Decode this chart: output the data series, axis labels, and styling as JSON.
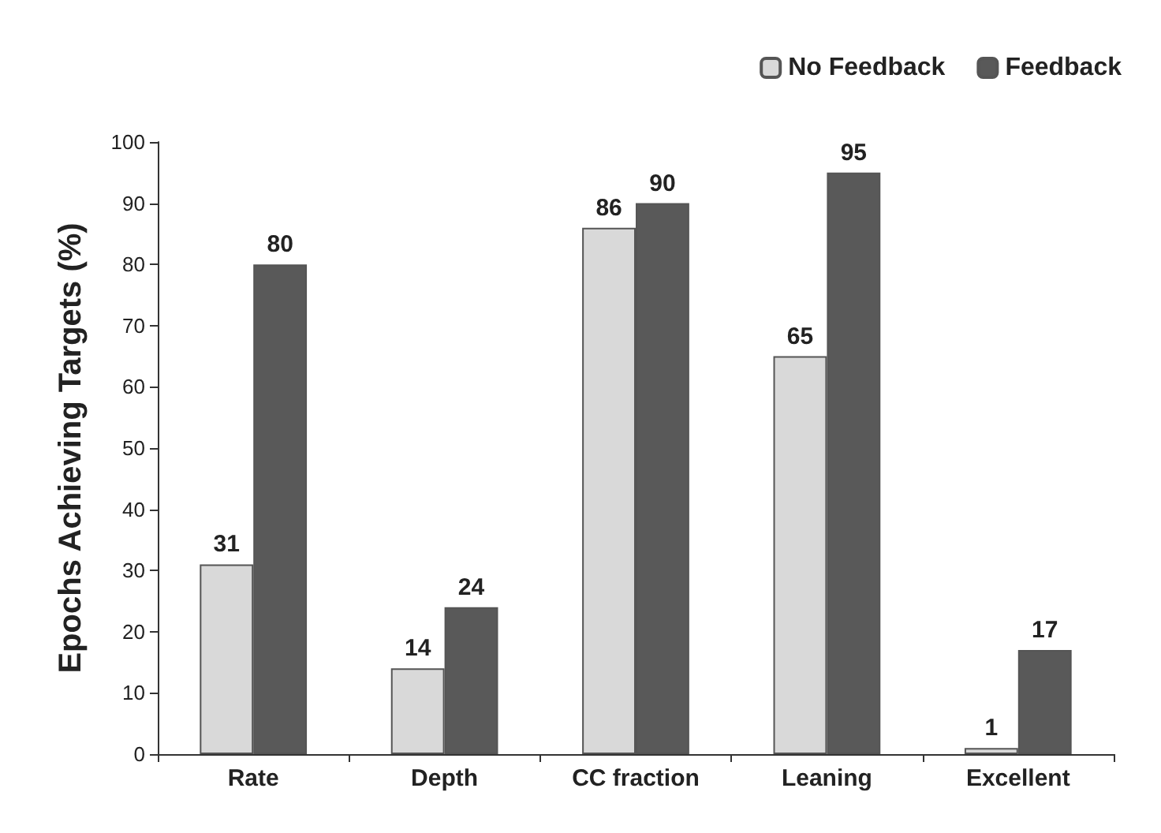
{
  "chart_data": {
    "type": "bar",
    "categories": [
      "Rate",
      "Depth",
      "CC fraction",
      "Leaning",
      "Excellent"
    ],
    "ylabel": "Epochs Achieving Targets (%)",
    "series": [
      {
        "name": "No Feedback",
        "color": "#d9d9d9",
        "values": [
          31,
          14,
          86,
          65,
          1
        ]
      },
      {
        "name": "Feedback",
        "color": "#595959",
        "values": [
          80,
          24,
          90,
          95,
          17
        ]
      }
    ],
    "ylim": [
      0,
      100
    ],
    "yticks": [
      0,
      10,
      20,
      30,
      40,
      50,
      60,
      70,
      80,
      90,
      100
    ],
    "grid": false,
    "legend": "top right",
    "data_labels": true
  }
}
